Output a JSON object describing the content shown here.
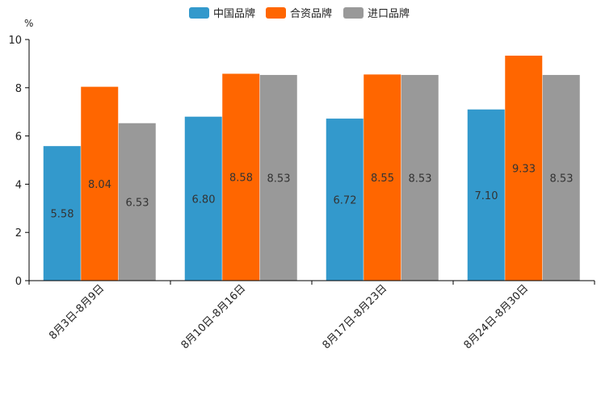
{
  "chart_data": {
    "type": "bar",
    "unit": "%",
    "categories": [
      "8月3日-8月9日",
      "8月10日-8月16日",
      "8月17日-8月23日",
      "8月24日-8月30日"
    ],
    "series": [
      {
        "name": "中国品牌",
        "color": "#3399cc",
        "values": [
          5.58,
          6.8,
          6.72,
          7.1
        ]
      },
      {
        "name": "合资品牌",
        "color": "#ff6600",
        "values": [
          8.04,
          8.58,
          8.55,
          9.33
        ]
      },
      {
        "name": "进口品牌",
        "color": "#999999",
        "values": [
          6.53,
          8.53,
          8.53,
          8.53
        ]
      }
    ],
    "ylim": [
      0,
      10
    ],
    "yticks": [
      0,
      2,
      4,
      6,
      8,
      10
    ],
    "legend_position": "top-center",
    "grid": false
  }
}
